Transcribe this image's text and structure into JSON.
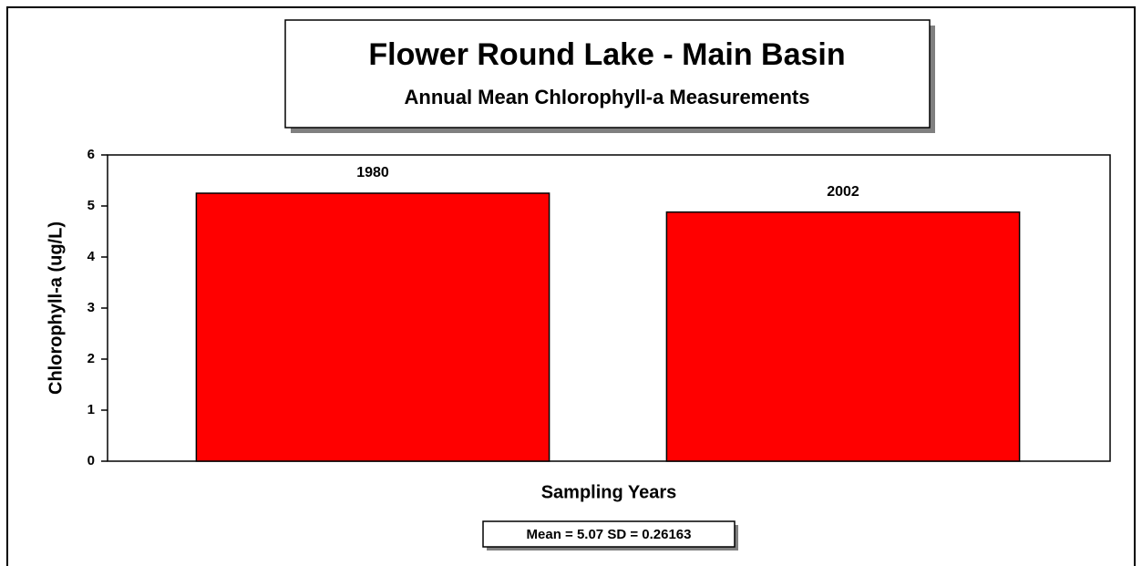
{
  "chart_data": {
    "type": "bar",
    "title": "Flower Round Lake - Main Basin",
    "subtitle": "Annual Mean Chlorophyll-a Measurements",
    "categories": [
      "1980",
      "2002"
    ],
    "values": [
      5.25,
      4.88
    ],
    "color": "#ff0000",
    "ylabel": "Chlorophyll-a (ug/L)",
    "xlabel": "Sampling Years",
    "annotation": "Mean = 5.07 SD = 0.26163",
    "ylim": [
      0,
      6
    ],
    "yticks": [
      0,
      1,
      2,
      3,
      4,
      5,
      6
    ],
    "grid": false
  }
}
